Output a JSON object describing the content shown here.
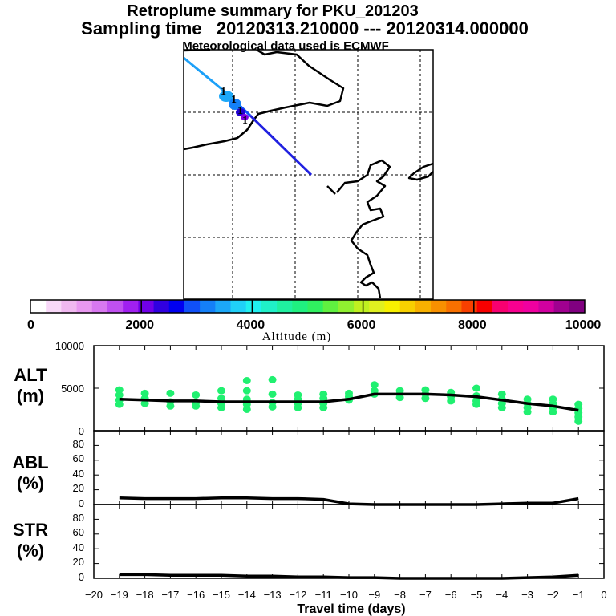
{
  "header": {
    "title": "Retroplume summary for PKU_201203",
    "sampling": "Sampling time   20120313.210000 --- 20120314.000000",
    "met": "Meteorological data used is ECMWF"
  },
  "colorbar": {
    "label": "Altitude (m)",
    "tick_labels": [
      "0",
      "2000",
      "4000",
      "6000",
      "8000",
      "10000"
    ],
    "colors": [
      "#ffffff",
      "#f8d8f8",
      "#f0b8f0",
      "#e898f0",
      "#d878f0",
      "#c050f0",
      "#a020f0",
      "#7000e8",
      "#3000e0",
      "#0000f0",
      "#1050f8",
      "#1480f8",
      "#1ca8f8",
      "#20d0f8",
      "#20f0f0",
      "#20f0c8",
      "#20f0a0",
      "#20f080",
      "#30f060",
      "#60f040",
      "#90f030",
      "#c0f020",
      "#e0f020",
      "#f8f000",
      "#f8d000",
      "#f8b000",
      "#f89000",
      "#f87000",
      "#f84000",
      "#f80000",
      "#f80070",
      "#f80090",
      "#f000a0",
      "#d000a0",
      "#a00090",
      "#800080"
    ]
  },
  "map": {
    "features": [
      "retroplume-trajectory-line",
      "coastline",
      "dashed-grid"
    ]
  },
  "panels": [
    {
      "label_top": "ALT",
      "label_bottom": "(m)",
      "yticks": [
        "10000",
        "5000",
        "0"
      ]
    },
    {
      "label_top": "ABL",
      "label_bottom": "(%)",
      "yticks": [
        "80",
        "60",
        "40",
        "20",
        "0"
      ]
    },
    {
      "label_top": "STR",
      "label_bottom": "(%)",
      "yticks": [
        "80",
        "60",
        "40",
        "20",
        "0"
      ]
    }
  ],
  "xaxis": {
    "label": "Travel time (days)",
    "tick_labels": [
      "−20",
      "−19",
      "−18",
      "−17",
      "−16",
      "−15",
      "−14",
      "−13",
      "−12",
      "−11",
      "−10",
      "−9",
      "−8",
      "−7",
      "−6",
      "−5",
      "−4",
      "−3",
      "−2",
      "−1",
      "0"
    ]
  },
  "chart_data": [
    {
      "type": "line",
      "panel": "ALT",
      "title": "ALT (m)",
      "xlabel": "Travel time (days)",
      "ylabel": "ALT (m)",
      "xlim": [
        -20,
        0
      ],
      "ylim": [
        0,
        10000
      ],
      "x": [
        -19,
        -18,
        -17,
        -16,
        -15,
        -14,
        -13,
        -12,
        -11,
        -10,
        -9,
        -8,
        -7,
        -6,
        -5,
        -4,
        -3,
        -2,
        -1
      ],
      "series": [
        {
          "name": "mean altitude",
          "values": [
            3700,
            3600,
            3500,
            3500,
            3400,
            3400,
            3400,
            3400,
            3400,
            3700,
            4300,
            4300,
            4300,
            4200,
            4000,
            3600,
            3200,
            2900,
            2400
          ]
        }
      ],
      "scatter": {
        "name": "particle altitudes",
        "color": "#20f070",
        "points": [
          [
            -19,
            3100
          ],
          [
            -19,
            3600
          ],
          [
            -19,
            4200
          ],
          [
            -19,
            4800
          ],
          [
            -18,
            3200
          ],
          [
            -18,
            3800
          ],
          [
            -18,
            4400
          ],
          [
            -17,
            2900
          ],
          [
            -17,
            3400
          ],
          [
            -17,
            4400
          ],
          [
            -16,
            2900
          ],
          [
            -16,
            3300
          ],
          [
            -16,
            4200
          ],
          [
            -15,
            2700
          ],
          [
            -15,
            3200
          ],
          [
            -15,
            3800
          ],
          [
            -15,
            4700
          ],
          [
            -14,
            2500
          ],
          [
            -14,
            3100
          ],
          [
            -14,
            3700
          ],
          [
            -14,
            4700
          ],
          [
            -14,
            5900
          ],
          [
            -13,
            2800
          ],
          [
            -13,
            3300
          ],
          [
            -13,
            4300
          ],
          [
            -13,
            6000
          ],
          [
            -12,
            2700
          ],
          [
            -12,
            3200
          ],
          [
            -12,
            3700
          ],
          [
            -12,
            4200
          ],
          [
            -11,
            2700
          ],
          [
            -11,
            3200
          ],
          [
            -11,
            3800
          ],
          [
            -11,
            4300
          ],
          [
            -10,
            3600
          ],
          [
            -10,
            4000
          ],
          [
            -10,
            4400
          ],
          [
            -9,
            4300
          ],
          [
            -9,
            4700
          ],
          [
            -9,
            5400
          ],
          [
            -8,
            3900
          ],
          [
            -8,
            4300
          ],
          [
            -8,
            4700
          ],
          [
            -7,
            3800
          ],
          [
            -7,
            4300
          ],
          [
            -7,
            4800
          ],
          [
            -6,
            3500
          ],
          [
            -6,
            4000
          ],
          [
            -6,
            4500
          ],
          [
            -5,
            3100
          ],
          [
            -5,
            3500
          ],
          [
            -5,
            4100
          ],
          [
            -5,
            5000
          ],
          [
            -4,
            2700
          ],
          [
            -4,
            3200
          ],
          [
            -4,
            3700
          ],
          [
            -4,
            4300
          ],
          [
            -3,
            2200
          ],
          [
            -3,
            2700
          ],
          [
            -3,
            3200
          ],
          [
            -3,
            3700
          ],
          [
            -2,
            2200
          ],
          [
            -2,
            2700
          ],
          [
            -2,
            3200
          ],
          [
            -2,
            3700
          ],
          [
            -1,
            1100
          ],
          [
            -1,
            1600
          ],
          [
            -1,
            2100
          ],
          [
            -1,
            2600
          ],
          [
            -1,
            3100
          ]
        ]
      }
    },
    {
      "type": "line",
      "panel": "ABL",
      "title": "ABL (%)",
      "xlabel": "Travel time (days)",
      "ylabel": "ABL (%)",
      "xlim": [
        -20,
        0
      ],
      "ylim": [
        0,
        100
      ],
      "x": [
        -19,
        -18,
        -17,
        -16,
        -15,
        -14,
        -13,
        -12,
        -11,
        -10,
        -9,
        -8,
        -7,
        -6,
        -5,
        -4,
        -3,
        -2,
        -1
      ],
      "series": [
        {
          "name": "ABL fraction",
          "values": [
            9,
            8,
            8,
            8,
            9,
            9,
            8,
            8,
            7,
            1,
            0,
            0,
            0,
            0,
            0,
            1,
            2,
            2,
            8
          ]
        }
      ]
    },
    {
      "type": "line",
      "panel": "STR",
      "title": "STR (%)",
      "xlabel": "Travel time (days)",
      "ylabel": "STR (%)",
      "xlim": [
        -20,
        0
      ],
      "ylim": [
        0,
        100
      ],
      "x": [
        -19,
        -18,
        -17,
        -16,
        -15,
        -14,
        -13,
        -12,
        -11,
        -10,
        -9,
        -8,
        -7,
        -6,
        -5,
        -4,
        -3,
        -2,
        -1
      ],
      "series": [
        {
          "name": "stratospheric fraction",
          "values": [
            5,
            5,
            4,
            4,
            4,
            3,
            3,
            2,
            2,
            1,
            1,
            0,
            0,
            0,
            0,
            0,
            1,
            2,
            4
          ]
        }
      ]
    }
  ]
}
